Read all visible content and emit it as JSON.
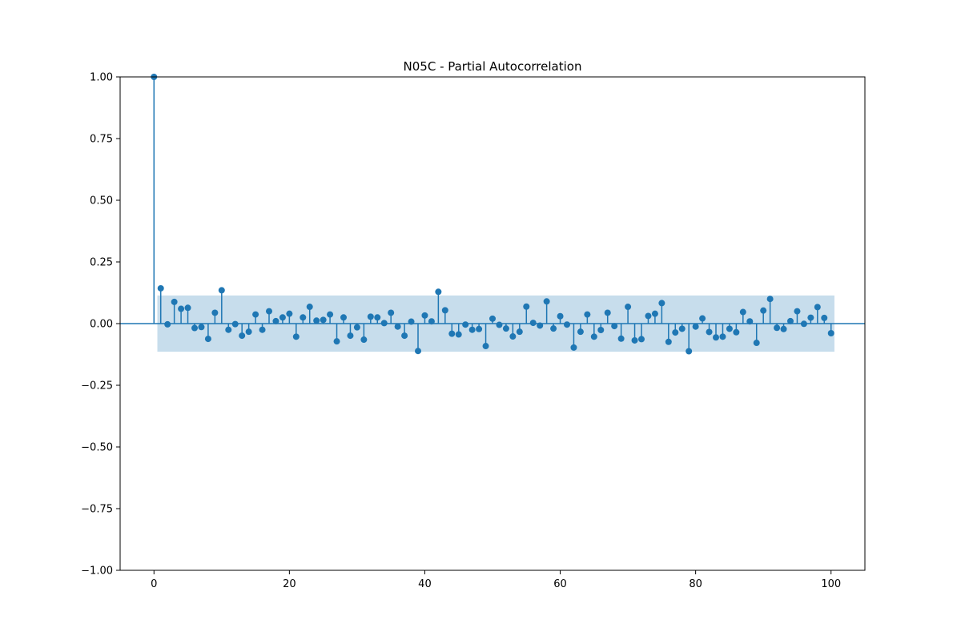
{
  "chart_data": {
    "type": "stem",
    "title": "N05C - Partial Autocorrelation",
    "xlabel": "",
    "ylabel": "",
    "xlim": [
      -5,
      105
    ],
    "ylim": [
      -1.0,
      1.0
    ],
    "xticks": [
      0,
      20,
      40,
      60,
      80,
      100
    ],
    "yticks": [
      -1.0,
      -0.75,
      -0.5,
      -0.25,
      0.0,
      0.25,
      0.5,
      0.75,
      1.0
    ],
    "xtick_labels": [
      "0",
      "20",
      "40",
      "60",
      "80",
      "100"
    ],
    "ytick_labels": [
      "−1.00",
      "−0.75",
      "−0.50",
      "−0.25",
      "0.00",
      "0.25",
      "0.50",
      "0.75",
      "1.00"
    ],
    "confidence_band": {
      "x_start": 0.5,
      "x_end": 100.5,
      "lower": -0.114,
      "upper": 0.114
    },
    "grid": false,
    "colors": {
      "stem": "#1f77b4",
      "band": "#1f77b4",
      "axis": "#000000"
    },
    "lags": [
      0,
      1,
      2,
      3,
      4,
      5,
      6,
      7,
      8,
      9,
      10,
      11,
      12,
      13,
      14,
      15,
      16,
      17,
      18,
      19,
      20,
      21,
      22,
      23,
      24,
      25,
      26,
      27,
      28,
      29,
      30,
      31,
      32,
      33,
      34,
      35,
      36,
      37,
      38,
      39,
      40,
      41,
      42,
      43,
      44,
      45,
      46,
      47,
      48,
      49,
      50,
      51,
      52,
      53,
      54,
      55,
      56,
      57,
      58,
      59,
      60,
      61,
      62,
      63,
      64,
      65,
      66,
      67,
      68,
      69,
      70,
      71,
      72,
      73,
      74,
      75,
      76,
      77,
      78,
      79,
      80,
      81,
      82,
      83,
      84,
      85,
      86,
      87,
      88,
      89,
      90,
      91,
      92,
      93,
      94,
      95,
      96,
      97,
      98,
      99,
      100
    ],
    "values": [
      1.0,
      0.143,
      -0.003,
      0.088,
      0.06,
      0.064,
      -0.018,
      -0.014,
      -0.062,
      0.044,
      0.135,
      -0.025,
      -0.002,
      -0.049,
      -0.033,
      0.037,
      -0.025,
      0.05,
      0.01,
      0.025,
      0.04,
      -0.053,
      0.025,
      0.068,
      0.012,
      0.015,
      0.037,
      -0.072,
      0.025,
      -0.049,
      -0.015,
      -0.065,
      0.028,
      0.025,
      0.002,
      0.044,
      -0.012,
      -0.049,
      0.008,
      -0.111,
      0.033,
      0.009,
      0.129,
      0.054,
      -0.041,
      -0.044,
      -0.004,
      -0.025,
      -0.022,
      -0.091,
      0.02,
      -0.005,
      -0.02,
      -0.052,
      -0.033,
      0.069,
      0.003,
      -0.008,
      0.09,
      -0.02,
      0.03,
      -0.004,
      -0.097,
      -0.033,
      0.037,
      -0.053,
      -0.026,
      0.044,
      -0.01,
      -0.061,
      0.068,
      -0.068,
      -0.063,
      0.031,
      0.04,
      0.083,
      -0.074,
      -0.036,
      -0.021,
      -0.112,
      -0.012,
      0.021,
      -0.034,
      -0.056,
      -0.053,
      -0.021,
      -0.035,
      0.047,
      0.009,
      -0.078,
      0.053,
      0.1,
      -0.017,
      -0.022,
      0.01,
      0.05,
      -0.001,
      0.024,
      0.067,
      0.023,
      -0.039
    ]
  }
}
